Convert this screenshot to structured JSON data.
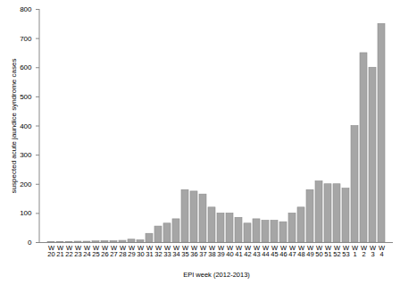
{
  "chart_data": {
    "type": "bar",
    "x_label": "EPI week (2012-2013)",
    "y_label": "suspected acute jaundice syndrome cases",
    "categories": [
      "W 20",
      "W 21",
      "W 22",
      "W 23",
      "W 24",
      "W 25",
      "W 26",
      "W 27",
      "W 28",
      "W 29",
      "W 30",
      "W 31",
      "W 32",
      "W 33",
      "W 34",
      "W 35",
      "W 36",
      "W 37",
      "W 38",
      "W 39",
      "W 40",
      "W 41",
      "W 42",
      "W 43",
      "W 44",
      "W 45",
      "W 46",
      "W 47",
      "W 48",
      "W 49",
      "W 50",
      "W 51",
      "W 52",
      "W 53",
      "W 1",
      "W 2",
      "W 3",
      "W 4"
    ],
    "values": [
      1,
      2,
      2,
      3,
      3,
      4,
      5,
      5,
      6,
      10,
      8,
      30,
      55,
      65,
      80,
      180,
      175,
      165,
      120,
      100,
      100,
      85,
      65,
      80,
      75,
      75,
      70,
      100,
      120,
      180,
      210,
      200,
      200,
      185,
      400,
      650,
      600,
      750
    ],
    "color": "#a6a6a6",
    "ylim": [
      0,
      800
    ],
    "yticks": [
      0,
      100,
      200,
      300,
      400,
      500,
      600,
      700,
      800
    ],
    "grid": false
  }
}
